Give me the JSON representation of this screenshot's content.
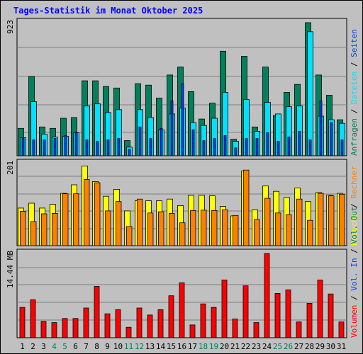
{
  "title": "Tages-Statistik im Monat Oktober 2025",
  "colors": {
    "background": "#c0c0c0",
    "plot_bg": "#c0c0c0",
    "grid": "#808080",
    "title": "#0000ff",
    "anfragen": "#00805c",
    "dateien": "#00e0ff",
    "seiten": "#0040ff",
    "besuche": "#ffff00",
    "rechner": "#ff8000",
    "volumen": "#ff0000",
    "weekend_label": "#00805c",
    "day_label": "#000000"
  },
  "chart_data": [
    {
      "type": "bar",
      "name": "hits-panel",
      "ymax_label": "923",
      "ylim": [
        0,
        923
      ],
      "categories": [
        "1",
        "2",
        "3",
        "4",
        "5",
        "6",
        "7",
        "8",
        "9",
        "10",
        "11",
        "12",
        "13",
        "14",
        "15",
        "16",
        "17",
        "18",
        "19",
        "20",
        "21",
        "22",
        "23",
        "24",
        "25",
        "26",
        "27",
        "28",
        "29",
        "30",
        "31"
      ],
      "weekend_days": [
        "4",
        "5",
        "11",
        "12",
        "18",
        "19",
        "25",
        "26"
      ],
      "series": [
        {
          "name": "Anfragen",
          "color": "#00805c",
          "values": [
            190,
            550,
            200,
            190,
            260,
            265,
            520,
            520,
            480,
            470,
            105,
            500,
            490,
            400,
            560,
            615,
            445,
            255,
            365,
            725,
            115,
            690,
            200,
            615,
            280,
            440,
            495,
            923,
            560,
            420,
            250
          ]
        },
        {
          "name": "Dateien",
          "color": "#00e0ff",
          "values": [
            125,
            375,
            150,
            130,
            135,
            160,
            345,
            360,
            300,
            320,
            60,
            320,
            265,
            180,
            290,
            330,
            230,
            210,
            260,
            440,
            100,
            390,
            170,
            370,
            290,
            340,
            345,
            860,
            275,
            250,
            225
          ]
        },
        {
          "name": "Seiten",
          "color": "#0040ff",
          "values": [
            120,
            110,
            110,
            120,
            140,
            160,
            110,
            100,
            110,
            120,
            45,
            200,
            120,
            190,
            380,
            500,
            180,
            105,
            120,
            140,
            55,
            120,
            120,
            160,
            100,
            130,
            170,
            110,
            380,
            230,
            110
          ]
        }
      ],
      "right_labels": [
        {
          "text": "Anfragen",
          "color": "#00805c"
        },
        {
          "text": "Dateien",
          "color": "#00e0ff"
        },
        {
          "text": "Seiten",
          "color": "#0040ff"
        }
      ]
    },
    {
      "type": "bar",
      "name": "visits-panel",
      "ymax_label": "201",
      "ylim": [
        0,
        201
      ],
      "series": [
        {
          "name": "Besuche",
          "color": "#ffff00",
          "values": [
            92,
            104,
            92,
            101,
            128,
            149,
            195,
            157,
            121,
            138,
            85,
            110,
            110,
            110,
            114,
            98,
            123,
            123,
            122,
            96,
            73,
            183,
            88,
            146,
            133,
            118,
            141,
            108,
            130,
            124,
            128
          ]
        },
        {
          "name": "Rechner",
          "color": "#ff8000",
          "values": [
            84,
            59,
            78,
            79,
            127,
            127,
            162,
            154,
            85,
            108,
            47,
            114,
            80,
            83,
            79,
            56,
            86,
            87,
            86,
            88,
            74,
            185,
            64,
            116,
            80,
            76,
            114,
            62,
            128,
            122,
            126
          ]
        }
      ],
      "right_labels": [
        {
          "text": "Besuche",
          "color": "#ffff00"
        },
        {
          "text": "Rechner",
          "color": "#ff8000"
        }
      ]
    },
    {
      "type": "bar",
      "name": "volume-panel",
      "ymax_label": "14.44 MB",
      "ylim": [
        0,
        14.44
      ],
      "series": [
        {
          "name": "Volumen",
          "color": "#ff0000",
          "values": [
            5.2,
            6.5,
            2.8,
            2.6,
            3.3,
            3.3,
            5.1,
            8.8,
            4.1,
            4.8,
            1.8,
            5.1,
            3.9,
            4.8,
            7.2,
            9.4,
            2.2,
            5.8,
            5.2,
            9.9,
            3.2,
            8.9,
            2.6,
            14.44,
            7.6,
            8.2,
            2.7,
            5.9,
            9.9,
            7.5,
            2.7
          ]
        }
      ],
      "right_labels": [
        {
          "text": "Volumen",
          "color": "#ff0000"
        },
        {
          "text": "Vol. In",
          "color": "#0040ff"
        },
        {
          "text": "Vol. Out",
          "color": "#00805c"
        }
      ]
    }
  ]
}
